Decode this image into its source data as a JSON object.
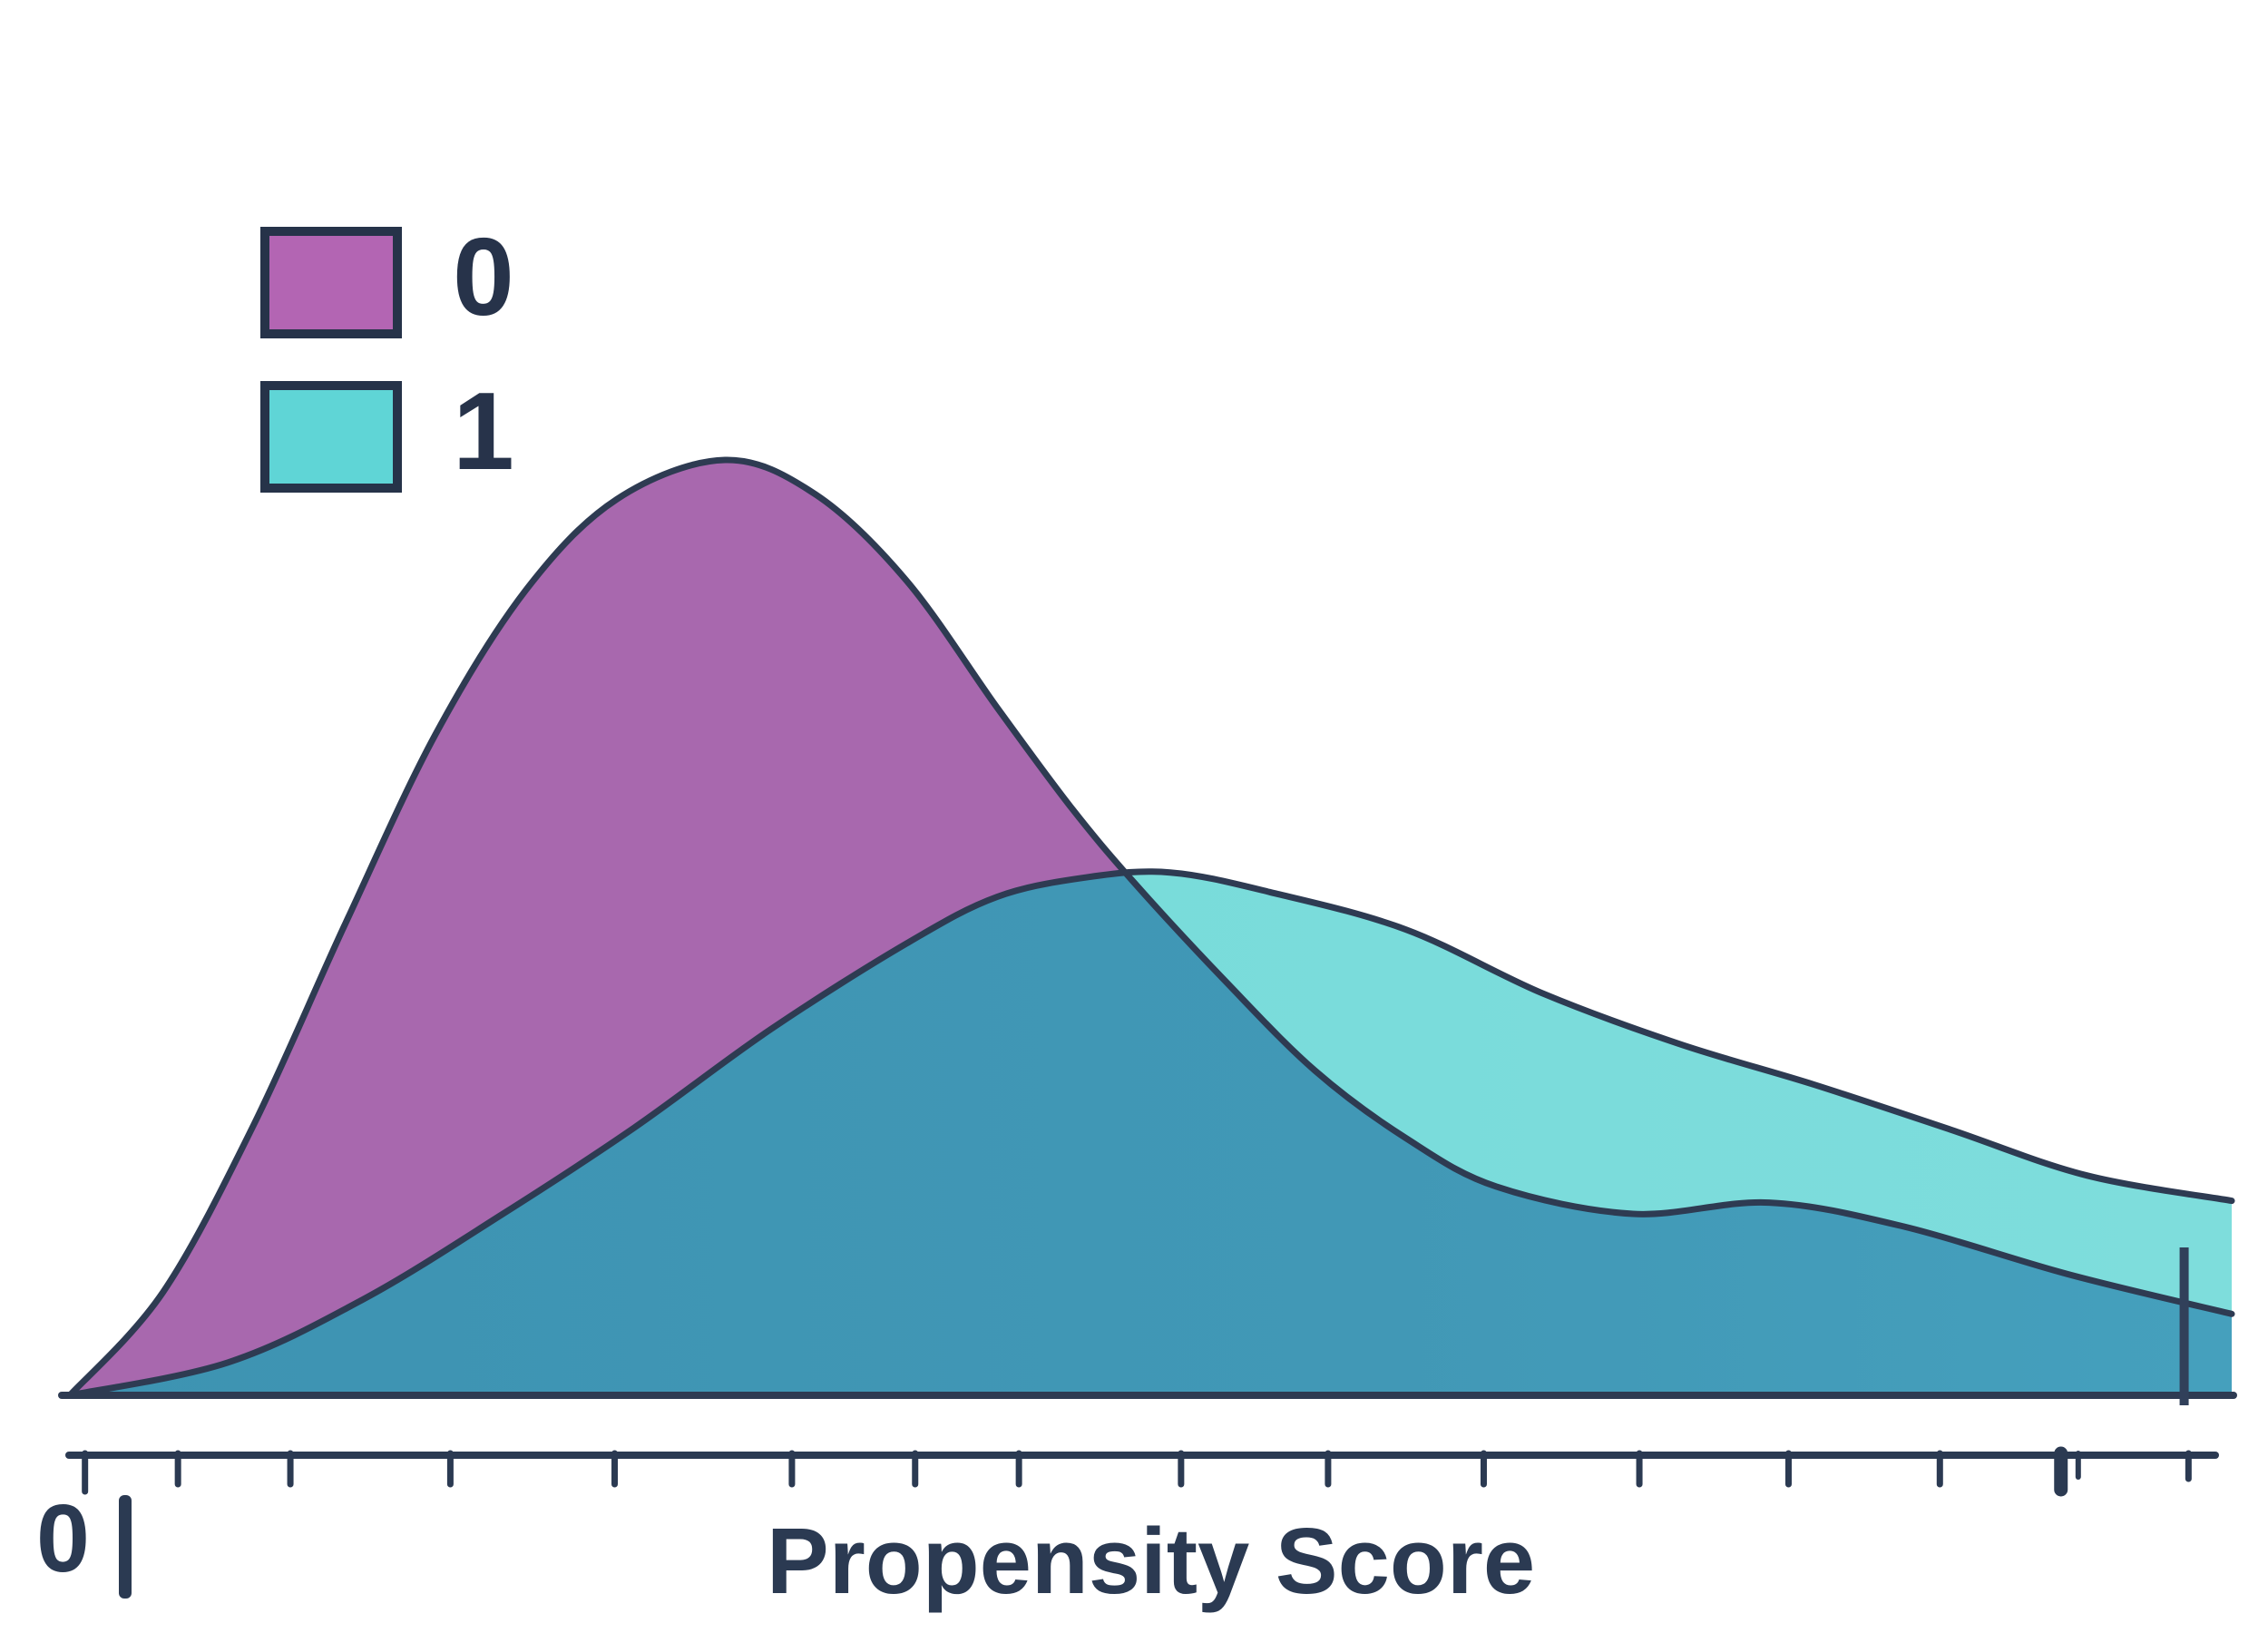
{
  "chart_data": {
    "type": "area",
    "subtype": "kde-density-overlay",
    "title": "",
    "xlabel": "Propensity Score",
    "ylabel": "",
    "xlim": [
      0,
      1
    ],
    "x_tick_labels": [
      "0"
    ],
    "grid": false,
    "legend": {
      "position": "upper-left",
      "entries": [
        {
          "label": "0",
          "swatch_color": "#b365b3"
        },
        {
          "label": "1",
          "swatch_color": "#5fd5d6"
        }
      ]
    },
    "series": [
      {
        "name": "0",
        "fill_color": "#a868ae",
        "y_units": "relative_density",
        "points": [
          [
            0.0,
            0.0
          ],
          [
            0.043,
            0.11
          ],
          [
            0.085,
            0.289
          ],
          [
            0.127,
            0.502
          ],
          [
            0.169,
            0.706
          ],
          [
            0.211,
            0.861
          ],
          [
            0.253,
            0.958
          ],
          [
            0.303,
            1.0
          ],
          [
            0.345,
            0.963
          ],
          [
            0.387,
            0.871
          ],
          [
            0.429,
            0.735
          ],
          [
            0.463,
            0.629
          ],
          [
            0.492,
            0.549
          ],
          [
            0.534,
            0.444
          ],
          [
            0.576,
            0.347
          ],
          [
            0.618,
            0.275
          ],
          [
            0.66,
            0.223
          ],
          [
            0.723,
            0.194
          ],
          [
            0.786,
            0.206
          ],
          [
            0.849,
            0.18
          ],
          [
            0.925,
            0.129
          ],
          [
            1.0,
            0.087
          ]
        ]
      },
      {
        "name": "1",
        "fill_color": "#7adcdb",
        "y_units": "relative_density",
        "points": [
          [
            0.0,
            0.0
          ],
          [
            0.073,
            0.035
          ],
          [
            0.136,
            0.103
          ],
          [
            0.199,
            0.192
          ],
          [
            0.261,
            0.286
          ],
          [
            0.324,
            0.391
          ],
          [
            0.387,
            0.483
          ],
          [
            0.429,
            0.533
          ],
          [
            0.471,
            0.554
          ],
          [
            0.509,
            0.559
          ],
          [
            0.555,
            0.538
          ],
          [
            0.618,
            0.498
          ],
          [
            0.681,
            0.43
          ],
          [
            0.744,
            0.376
          ],
          [
            0.807,
            0.332
          ],
          [
            0.87,
            0.284
          ],
          [
            0.933,
            0.235
          ],
          [
            1.0,
            0.208
          ]
        ]
      }
    ],
    "overlap_fill_color": "#4198b6",
    "outline_color": "#2e3b52",
    "axis_color": "#2b3a52",
    "crossing_x": 0.49,
    "ticks_x": [
      0.007,
      0.05,
      0.102,
      0.176,
      0.252,
      0.334,
      0.391,
      0.439,
      0.514,
      0.582,
      0.654,
      0.726,
      0.795,
      0.865,
      0.921,
      0.929,
      0.98
    ],
    "thick_tick_index": 14,
    "thin_tick_index": 15,
    "rug_mark_x": 0.978
  }
}
